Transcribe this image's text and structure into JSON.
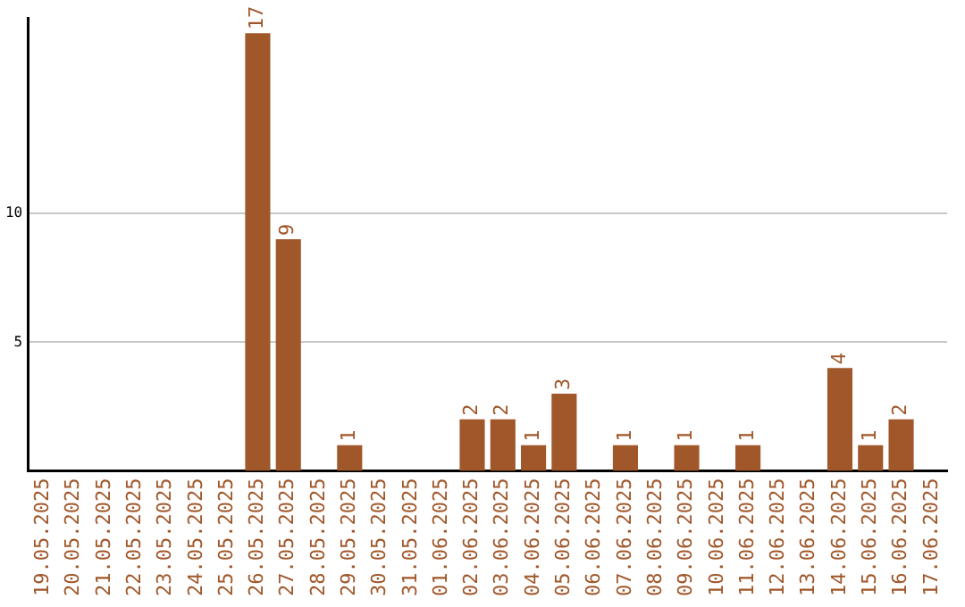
{
  "chart_data": {
    "type": "bar",
    "categories": [
      "19.05.2025",
      "20.05.2025",
      "21.05.2025",
      "22.05.2025",
      "23.05.2025",
      "24.05.2025",
      "25.05.2025",
      "26.05.2025",
      "27.05.2025",
      "28.05.2025",
      "29.05.2025",
      "30.05.2025",
      "31.05.2025",
      "01.06.2025",
      "02.06.2025",
      "03.06.2025",
      "04.06.2025",
      "05.06.2025",
      "06.06.2025",
      "07.06.2025",
      "08.06.2025",
      "09.06.2025",
      "10.06.2025",
      "11.06.2025",
      "12.06.2025",
      "13.06.2025",
      "14.06.2025",
      "15.06.2025",
      "16.06.2025",
      "17.06.2025"
    ],
    "values": [
      0,
      0,
      0,
      0,
      0,
      0,
      0,
      17,
      9,
      0,
      1,
      0,
      0,
      0,
      2,
      2,
      1,
      3,
      0,
      1,
      0,
      1,
      0,
      1,
      0,
      0,
      4,
      1,
      2,
      0
    ],
    "value_labels": [
      null,
      null,
      null,
      null,
      null,
      null,
      null,
      "17",
      "9",
      null,
      "1",
      null,
      null,
      null,
      "2",
      "2",
      "1",
      "3",
      null,
      "1",
      null,
      "1",
      null,
      "1",
      null,
      null,
      "4",
      "1",
      "2",
      null
    ],
    "color": "#a0572a",
    "ylim": [
      0,
      17.6
    ],
    "yticks": [
      5,
      10
    ],
    "grid": "y",
    "legend": false
  }
}
